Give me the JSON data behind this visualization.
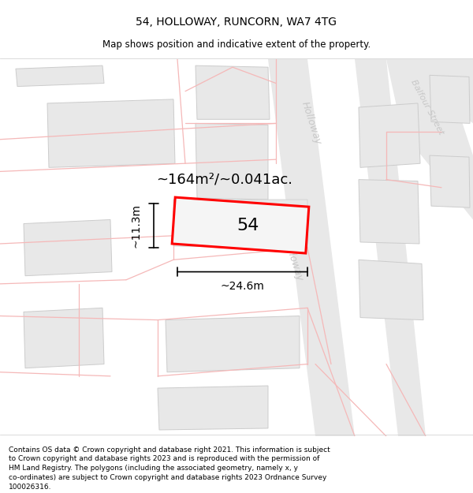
{
  "title": "54, HOLLOWAY, RUNCORN, WA7 4TG",
  "subtitle": "Map shows position and indicative extent of the property.",
  "footer": "Contains OS data © Crown copyright and database right 2021. This information is subject\nto Crown copyright and database rights 2023 and is reproduced with the permission of\nHM Land Registry. The polygons (including the associated geometry, namely x, y\nco-ordinates) are subject to Crown copyright and database rights 2023 Ordnance Survey\n100026316.",
  "area_label": "~164m²/~0.041ac.",
  "width_label": "~24.6m",
  "height_label": "~11.3m",
  "property_number": "54",
  "bg_color": "#ffffff",
  "building_color": "#e8e8e8",
  "building_edge": "#cccccc",
  "road_fill": "#e8e8e8",
  "road_line_color": "#f5b8b8",
  "property_fill": "#f0f0f0",
  "property_edge": "#ff0000",
  "road_label_color": "#c8c8c8",
  "dim_color": "#000000"
}
